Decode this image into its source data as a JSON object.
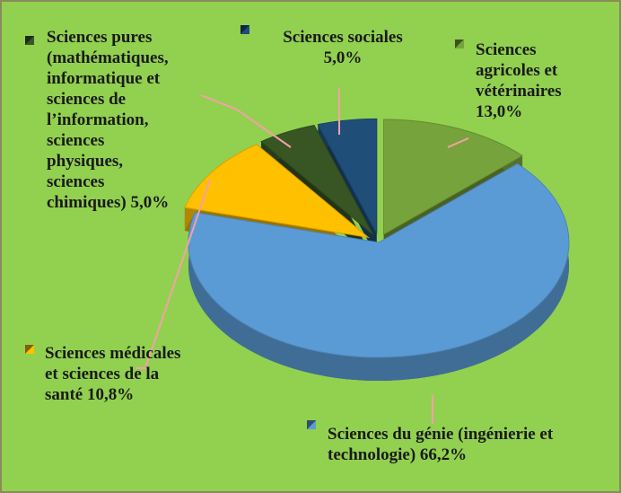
{
  "chart_data": {
    "type": "pie",
    "categories": [
      "Sciences agricoles et vétérinaires",
      "Sciences du génie (ingénierie et technologie)",
      "Sciences médicales et sciences de la santé",
      "Sciences pures (mathématiques, informatique et sciences de l’information, sciences physiques, sciences chimiques)",
      "Sciences sociales"
    ],
    "values": [
      13.0,
      66.2,
      10.8,
      5.0,
      5.0
    ],
    "value_labels": [
      "13,0%",
      "66,2%",
      "10,8%",
      "5,0%",
      "5,0%"
    ],
    "colors": [
      "#77a33c",
      "#5b9bd5",
      "#ffc000",
      "#375623",
      "#1f4e79"
    ]
  }
}
